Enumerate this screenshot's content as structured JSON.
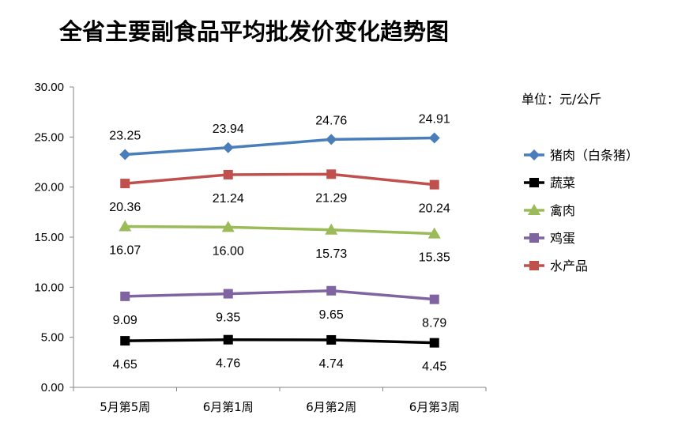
{
  "chart_data": {
    "type": "line",
    "title": "全省主要副食品平均批发价变化趋势图",
    "unit_label": "单位：元/公斤",
    "categories": [
      "5月第5周",
      "6月第1周",
      "6月第2周",
      "6月第3周"
    ],
    "ylim": [
      0,
      30
    ],
    "yticks": [
      "0.00",
      "5.00",
      "10.00",
      "15.00",
      "20.00",
      "25.00",
      "30.00"
    ],
    "grid": false,
    "legend_position": "right",
    "series": [
      {
        "name": "猪肉（白条猪）",
        "color": "#4a7ebb",
        "marker": "diamond",
        "values": [
          23.25,
          23.94,
          24.76,
          24.91
        ],
        "labels": [
          "23.25",
          "23.94",
          "24.76",
          "24.91"
        ],
        "label_pos": "above"
      },
      {
        "name": "蔬菜",
        "color": "#000000",
        "marker": "square",
        "values": [
          4.65,
          4.76,
          4.74,
          4.45
        ],
        "labels": [
          "4.65",
          "4.76",
          "4.74",
          "4.45"
        ],
        "label_pos": "below"
      },
      {
        "name": "禽肉",
        "color": "#9bbb59",
        "marker": "triangle",
        "values": [
          16.07,
          16.0,
          15.73,
          15.35
        ],
        "labels": [
          "16.07",
          "16.00",
          "15.73",
          "15.35"
        ],
        "label_pos": "below"
      },
      {
        "name": "鸡蛋",
        "color": "#8064a2",
        "marker": "square",
        "values": [
          9.09,
          9.35,
          9.65,
          8.79
        ],
        "labels": [
          "9.09",
          "9.35",
          "9.65",
          "8.79"
        ],
        "label_pos": "below"
      },
      {
        "name": "水产品",
        "color": "#c0504d",
        "marker": "square",
        "values": [
          20.36,
          21.24,
          21.29,
          20.24
        ],
        "labels": [
          "20.36",
          "21.24",
          "21.29",
          "20.24"
        ],
        "label_pos": "below"
      }
    ]
  }
}
